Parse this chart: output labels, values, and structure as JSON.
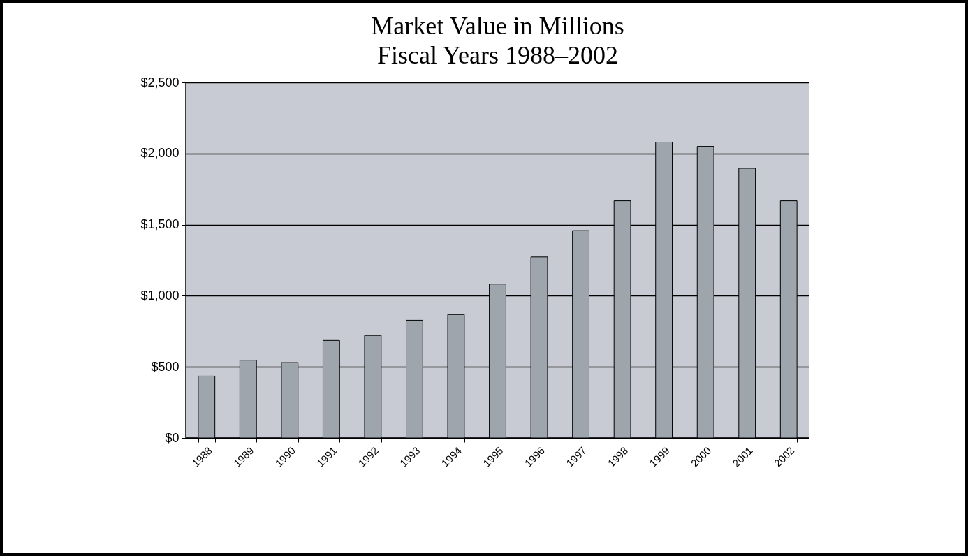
{
  "chart_data": {
    "type": "bar",
    "title": "Market Value in Millions",
    "subtitle": "Fiscal Years 1988–2002",
    "categories": [
      "1988",
      "1989",
      "1990",
      "1991",
      "1992",
      "1993",
      "1994",
      "1995",
      "1996",
      "1997",
      "1998",
      "1999",
      "2000",
      "2001",
      "2002"
    ],
    "values": [
      435,
      547,
      530,
      686,
      721,
      828,
      868,
      1082,
      1273,
      1458,
      1667,
      2080,
      2050,
      1896,
      1667
    ],
    "color": "#9ea5ad",
    "ylim": [
      0,
      2500
    ],
    "yticks": [
      {
        "value": 0,
        "label": "$0"
      },
      {
        "value": 500,
        "label": "$500"
      },
      {
        "value": 1000,
        "label": "$1,000"
      },
      {
        "value": 1500,
        "label": "$1,500"
      },
      {
        "value": 2000,
        "label": "$2,000"
      },
      {
        "value": 2500,
        "label": "$2,500"
      }
    ],
    "grid": "y"
  }
}
